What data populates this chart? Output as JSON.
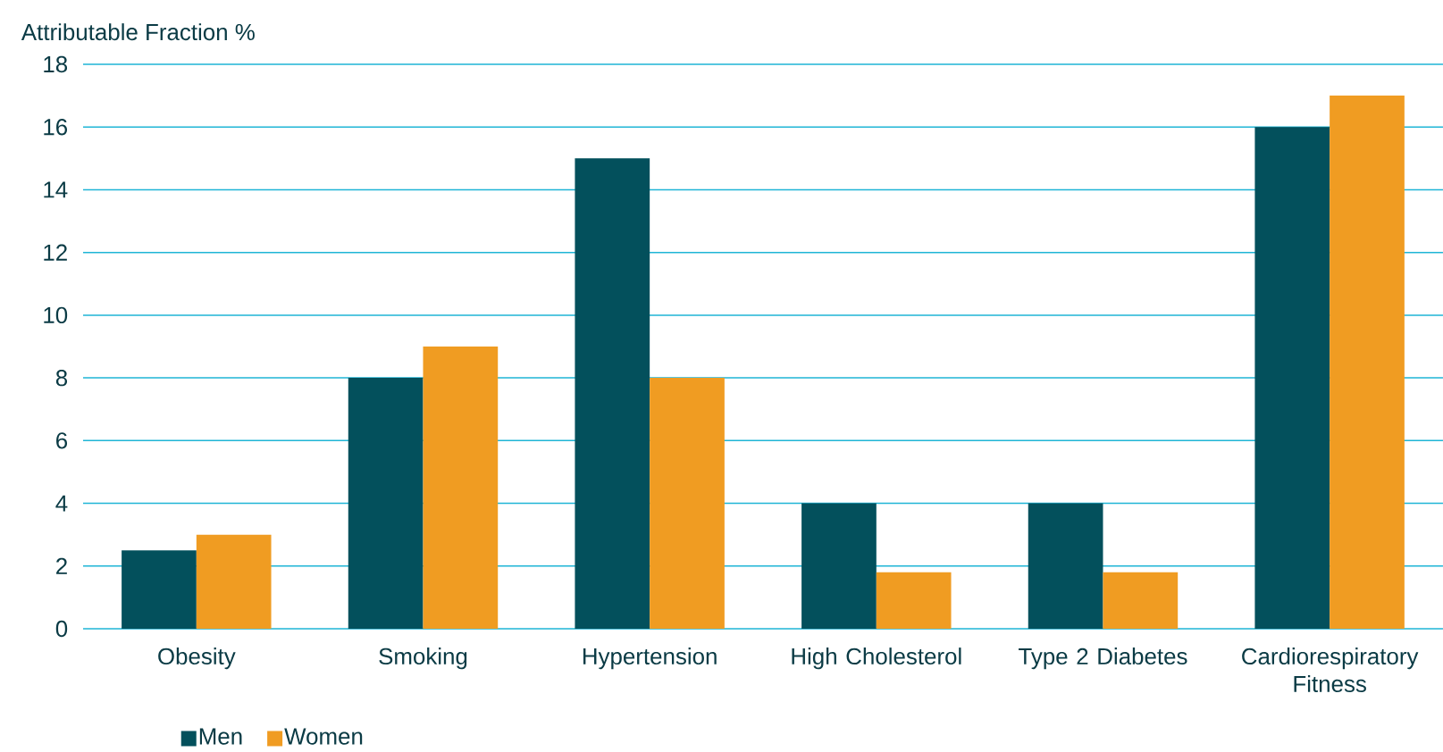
{
  "chart_data": {
    "type": "bar",
    "ylabel": "Attributable Fraction %",
    "categories": [
      "Obesity",
      "Smoking",
      "Hypertension",
      "High Cholesterol",
      "Type 2 Diabetes",
      "Cardiorespiratory Fitness"
    ],
    "series": [
      {
        "name": "Men",
        "color": "#03505c",
        "values": [
          2.5,
          8,
          15,
          4,
          4,
          16
        ]
      },
      {
        "name": "Women",
        "color": "#f09c22",
        "values": [
          3,
          9,
          8,
          1.8,
          1.8,
          17
        ]
      }
    ],
    "ylim": [
      0,
      18
    ],
    "yticks": [
      0,
      2,
      4,
      6,
      8,
      10,
      12,
      14,
      16,
      18
    ],
    "grid": "y",
    "legend": "bottom left"
  }
}
